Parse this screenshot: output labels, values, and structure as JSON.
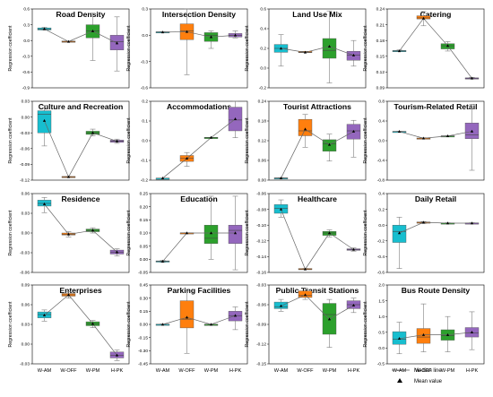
{
  "legend": {
    "median": "Median line",
    "mean": "Mean value"
  },
  "chart_data": [
    {
      "type": "box",
      "title": "Road Density",
      "ylabel": "Regression coefficient",
      "ylim": [
        -0.9,
        0.6
      ],
      "yticks": [
        "-0.9",
        "-0.6",
        "-0.3",
        "0.0",
        "0.3",
        "0.6"
      ],
      "categories": [
        "W-AM",
        "W-OFF",
        "W-PM",
        "H-PK"
      ],
      "boxes": [
        {
          "min": 0.2,
          "q1": 0.2,
          "median": 0.22,
          "q3": 0.24,
          "max": 0.25,
          "mean": 0.22
        },
        {
          "min": -0.02,
          "q1": -0.02,
          "median": -0.02,
          "q3": -0.01,
          "max": -0.01,
          "mean": -0.02
        },
        {
          "min": -0.38,
          "q1": 0.05,
          "median": 0.18,
          "q3": 0.3,
          "max": 0.52,
          "mean": 0.18
        },
        {
          "min": -0.58,
          "q1": -0.18,
          "median": -0.02,
          "q3": 0.1,
          "max": 0.45,
          "mean": -0.05
        }
      ]
    },
    {
      "type": "box",
      "title": "Intersection Density",
      "ylabel": "Regression coefficient",
      "ylim": [
        -0.6,
        0.3
      ],
      "yticks": [
        "-0.6",
        "-0.3",
        "0.0",
        "0.3"
      ],
      "categories": [
        "W-AM",
        "W-OFF",
        "W-PM",
        "H-PK"
      ],
      "boxes": [
        {
          "min": 0.03,
          "q1": 0.03,
          "median": 0.035,
          "q3": 0.04,
          "max": 0.04,
          "mean": 0.035
        },
        {
          "min": -0.45,
          "q1": -0.05,
          "median": 0.05,
          "q3": 0.13,
          "max": 0.3,
          "mean": 0.04
        },
        {
          "min": -0.15,
          "q1": -0.07,
          "median": 0.0,
          "q3": 0.03,
          "max": 0.05,
          "mean": -0.02
        },
        {
          "min": -0.03,
          "q1": -0.02,
          "median": 0.0,
          "q3": 0.02,
          "max": 0.05,
          "mean": 0.0
        }
      ]
    },
    {
      "type": "box",
      "title": "Land Use Mix",
      "ylabel": "Regression coefficient",
      "ylim": [
        -0.2,
        0.6
      ],
      "yticks": [
        "-0.2",
        "0.0",
        "0.2",
        "0.4",
        "0.6"
      ],
      "categories": [
        "W-AM",
        "W-OFF",
        "W-PM",
        "H-PK"
      ],
      "boxes": [
        {
          "min": 0.02,
          "q1": 0.16,
          "median": 0.2,
          "q3": 0.24,
          "max": 0.34,
          "mean": 0.2
        },
        {
          "min": 0.16,
          "q1": 0.16,
          "median": 0.16,
          "q3": 0.17,
          "max": 0.17,
          "mean": 0.16
        },
        {
          "min": -0.15,
          "q1": 0.1,
          "median": 0.18,
          "q3": 0.3,
          "max": 0.58,
          "mean": 0.22
        },
        {
          "min": 0.02,
          "q1": 0.08,
          "median": 0.13,
          "q3": 0.17,
          "max": 0.28,
          "mean": 0.13
        }
      ]
    },
    {
      "type": "box",
      "title": "Catering",
      "ylabel": "Regression coefficient",
      "ylim": [
        0.09,
        0.24
      ],
      "yticks": [
        "0.09",
        "0.12",
        "0.15",
        "0.18",
        "0.21",
        "0.24"
      ],
      "categories": [
        "W-AM",
        "W-OFF",
        "W-PM",
        "H-PK"
      ],
      "boxes": [
        {
          "min": 0.159,
          "q1": 0.159,
          "median": 0.16,
          "q3": 0.161,
          "max": 0.162,
          "mean": 0.16
        },
        {
          "min": 0.208,
          "q1": 0.221,
          "median": 0.223,
          "q3": 0.227,
          "max": 0.235,
          "mean": 0.222
        },
        {
          "min": 0.16,
          "q1": 0.164,
          "median": 0.17,
          "q3": 0.174,
          "max": 0.178,
          "mean": 0.17
        },
        {
          "min": 0.107,
          "q1": 0.107,
          "median": 0.108,
          "q3": 0.109,
          "max": 0.11,
          "mean": 0.108
        }
      ]
    },
    {
      "type": "box",
      "title": "Culture and Recreation",
      "ylabel": "Regression coefficient",
      "ylim": [
        -0.12,
        0.03
      ],
      "yticks": [
        "-0.12",
        "-0.09",
        "-0.06",
        "-0.03",
        "0.00",
        "0.03"
      ],
      "categories": [
        "W-AM",
        "W-OFF",
        "W-PM",
        "H-PK"
      ],
      "boxes": [
        {
          "min": -0.055,
          "q1": -0.03,
          "median": 0.005,
          "q3": 0.012,
          "max": 0.022,
          "mean": -0.007
        },
        {
          "min": -0.115,
          "q1": -0.114,
          "median": -0.114,
          "q3": -0.113,
          "max": -0.113,
          "mean": -0.114
        },
        {
          "min": -0.036,
          "q1": -0.033,
          "median": -0.03,
          "q3": -0.027,
          "max": -0.023,
          "mean": -0.03
        },
        {
          "min": -0.05,
          "q1": -0.048,
          "median": -0.046,
          "q3": -0.044,
          "max": -0.042,
          "mean": -0.046
        }
      ]
    },
    {
      "type": "box",
      "title": "Accommodations",
      "ylabel": "Regression coefficient",
      "ylim": [
        -0.2,
        0.2
      ],
      "yticks": [
        "-0.2",
        "-0.1",
        "0.0",
        "0.1",
        "0.2"
      ],
      "categories": [
        "W-AM",
        "W-OFF",
        "W-PM",
        "H-PK"
      ],
      "boxes": [
        {
          "min": -0.19,
          "q1": -0.19,
          "median": -0.19,
          "q3": -0.19,
          "max": -0.19,
          "mean": -0.19
        },
        {
          "min": -0.13,
          "q1": -0.105,
          "median": -0.09,
          "q3": -0.075,
          "max": -0.06,
          "mean": -0.09
        },
        {
          "min": 0.015,
          "q1": 0.015,
          "median": 0.016,
          "q3": 0.017,
          "max": 0.017,
          "mean": 0.016
        },
        {
          "min": 0.015,
          "q1": 0.05,
          "median": 0.105,
          "q3": 0.17,
          "max": 0.2,
          "mean": 0.11
        }
      ]
    },
    {
      "type": "box",
      "title": "Tourist Attractions",
      "ylabel": "Regression coefficient",
      "ylim": [
        0.0,
        0.24
      ],
      "yticks": [
        "0.00",
        "0.06",
        "0.12",
        "0.18",
        "0.24"
      ],
      "categories": [
        "W-AM",
        "W-OFF",
        "W-PM",
        "H-PK"
      ],
      "boxes": [
        {
          "min": 0.005,
          "q1": 0.005,
          "median": 0.006,
          "q3": 0.007,
          "max": 0.007,
          "mean": 0.006
        },
        {
          "min": 0.1,
          "q1": 0.135,
          "median": 0.15,
          "q3": 0.185,
          "max": 0.2,
          "mean": 0.155
        },
        {
          "min": 0.058,
          "q1": 0.088,
          "median": 0.11,
          "q3": 0.123,
          "max": 0.14,
          "mean": 0.108
        },
        {
          "min": 0.07,
          "q1": 0.125,
          "median": 0.15,
          "q3": 0.17,
          "max": 0.182,
          "mean": 0.148
        }
      ]
    },
    {
      "type": "box",
      "title": "Tourism-Related Retail",
      "ylabel": "Regression coefficient",
      "ylim": [
        -0.8,
        0.8
      ],
      "yticks": [
        "-0.8",
        "-0.4",
        "0.0",
        "0.4",
        "0.8"
      ],
      "categories": [
        "W-AM",
        "W-OFF",
        "W-PM",
        "H-PK"
      ],
      "boxes": [
        {
          "min": 0.18,
          "q1": 0.18,
          "median": 0.185,
          "q3": 0.19,
          "max": 0.19,
          "mean": 0.185
        },
        {
          "min": 0.04,
          "q1": 0.045,
          "median": 0.05,
          "q3": 0.055,
          "max": 0.06,
          "mean": 0.05
        },
        {
          "min": 0.09,
          "q1": 0.09,
          "median": 0.095,
          "q3": 0.1,
          "max": 0.1,
          "mean": 0.095
        },
        {
          "min": -0.6,
          "q1": 0.04,
          "median": 0.12,
          "q3": 0.36,
          "max": 0.74,
          "mean": 0.19
        }
      ]
    },
    {
      "type": "box",
      "title": "Residence",
      "ylabel": "Regression coefficient",
      "ylim": [
        -0.06,
        0.06
      ],
      "yticks": [
        "-0.06",
        "-0.03",
        "0.00",
        "0.03",
        "0.06"
      ],
      "categories": [
        "W-AM",
        "W-OFF",
        "W-PM",
        "H-PK"
      ],
      "boxes": [
        {
          "min": 0.031,
          "q1": 0.041,
          "median": 0.045,
          "q3": 0.05,
          "max": 0.054,
          "mean": 0.044
        },
        {
          "min": -0.006,
          "q1": -0.003,
          "median": -0.002,
          "q3": 0.0,
          "max": 0.002,
          "mean": -0.002
        },
        {
          "min": 0.0,
          "q1": 0.002,
          "median": 0.004,
          "q3": 0.006,
          "max": 0.008,
          "mean": 0.004
        },
        {
          "min": -0.035,
          "q1": -0.032,
          "median": -0.029,
          "q3": -0.026,
          "max": -0.024,
          "mean": -0.029
        }
      ]
    },
    {
      "type": "box",
      "title": "Education",
      "ylabel": "Regression coefficient",
      "ylim": [
        -0.05,
        0.25
      ],
      "yticks": [
        "-0.05",
        "0.00",
        "0.05",
        "0.10",
        "0.15",
        "0.20",
        "0.25"
      ],
      "categories": [
        "W-AM",
        "W-OFF",
        "W-PM",
        "H-PK"
      ],
      "boxes": [
        {
          "min": -0.012,
          "q1": -0.01,
          "median": -0.008,
          "q3": -0.006,
          "max": -0.004,
          "mean": -0.008
        },
        {
          "min": 0.1,
          "q1": 0.1,
          "median": 0.1,
          "q3": 0.101,
          "max": 0.101,
          "mean": 0.1
        },
        {
          "min": 0.0,
          "q1": 0.06,
          "median": 0.08,
          "q3": 0.13,
          "max": 0.24,
          "mean": 0.1
        },
        {
          "min": -0.04,
          "q1": 0.06,
          "median": 0.11,
          "q3": 0.13,
          "max": 0.24,
          "mean": 0.1
        }
      ]
    },
    {
      "type": "box",
      "title": "Healthcare",
      "ylabel": "Regression coefficient",
      "ylim": [
        -0.16,
        -0.06
      ],
      "yticks": [
        "-0.16",
        "-0.14",
        "-0.12",
        "-0.10",
        "-0.08",
        "-0.06"
      ],
      "categories": [
        "W-AM",
        "W-OFF",
        "W-PM",
        "H-PK"
      ],
      "boxes": [
        {
          "min": -0.09,
          "q1": -0.085,
          "median": -0.079,
          "q3": -0.074,
          "max": -0.068,
          "mean": -0.08
        },
        {
          "min": -0.156,
          "q1": -0.156,
          "median": -0.156,
          "q3": -0.155,
          "max": -0.155,
          "mean": -0.156
        },
        {
          "min": -0.115,
          "q1": -0.113,
          "median": -0.11,
          "q3": -0.108,
          "max": -0.106,
          "mean": -0.11
        },
        {
          "min": -0.133,
          "q1": -0.132,
          "median": -0.131,
          "q3": -0.13,
          "max": -0.129,
          "mean": -0.131
        }
      ]
    },
    {
      "type": "box",
      "title": "Daily Retail",
      "ylabel": "Regression coefficient",
      "ylim": [
        -0.6,
        0.4
      ],
      "yticks": [
        "-0.6",
        "-0.4",
        "-0.2",
        "0.0",
        "0.2",
        "0.4"
      ],
      "categories": [
        "W-AM",
        "W-OFF",
        "W-PM",
        "H-PK"
      ],
      "boxes": [
        {
          "min": -0.55,
          "q1": -0.22,
          "median": -0.08,
          "q3": 0.0,
          "max": 0.1,
          "mean": -0.1
        },
        {
          "min": 0.02,
          "q1": 0.03,
          "median": 0.035,
          "q3": 0.04,
          "max": 0.045,
          "mean": 0.035
        },
        {
          "min": 0.02,
          "q1": 0.022,
          "median": 0.025,
          "q3": 0.028,
          "max": 0.03,
          "mean": 0.025
        },
        {
          "min": 0.02,
          "q1": 0.022,
          "median": 0.025,
          "q3": 0.028,
          "max": 0.03,
          "mean": 0.025
        }
      ]
    },
    {
      "type": "box",
      "title": "Enterprises",
      "ylabel": "Regression coefficient",
      "ylim": [
        -0.03,
        0.09
      ],
      "yticks": [
        "-0.03",
        "0.00",
        "0.03",
        "0.06",
        "0.09"
      ],
      "categories": [
        "W-AM",
        "W-OFF",
        "W-PM",
        "H-PK"
      ],
      "boxes": [
        {
          "min": 0.035,
          "q1": 0.04,
          "median": 0.045,
          "q3": 0.049,
          "max": 0.052,
          "mean": 0.044
        },
        {
          "min": 0.07,
          "q1": 0.073,
          "median": 0.075,
          "q3": 0.077,
          "max": 0.08,
          "mean": 0.075
        },
        {
          "min": 0.025,
          "q1": 0.028,
          "median": 0.031,
          "q3": 0.034,
          "max": 0.036,
          "mean": 0.031
        },
        {
          "min": -0.025,
          "q1": -0.021,
          "median": -0.017,
          "q3": -0.012,
          "max": -0.009,
          "mean": -0.017
        }
      ]
    },
    {
      "type": "box",
      "title": "Parking Facilities",
      "ylabel": "Regression coefficient",
      "ylim": [
        -0.45,
        0.45
      ],
      "yticks": [
        "-0.45",
        "-0.30",
        "-0.15",
        "0.00",
        "0.15",
        "0.30",
        "0.45"
      ],
      "categories": [
        "W-AM",
        "W-OFF",
        "W-PM",
        "H-PK"
      ],
      "boxes": [
        {
          "min": -0.005,
          "q1": -0.003,
          "median": 0.0,
          "q3": 0.003,
          "max": 0.005,
          "mean": 0.0
        },
        {
          "min": -0.33,
          "q1": -0.04,
          "median": 0.06,
          "q3": 0.27,
          "max": 0.38,
          "mean": 0.08
        },
        {
          "min": -0.003,
          "q1": -0.002,
          "median": 0.0,
          "q3": 0.002,
          "max": 0.003,
          "mean": 0.0
        },
        {
          "min": -0.06,
          "q1": 0.04,
          "median": 0.1,
          "q3": 0.15,
          "max": 0.2,
          "mean": 0.1
        }
      ]
    },
    {
      "type": "box",
      "title": "Public Transit Stations",
      "ylabel": "Regression coefficient",
      "ylim": [
        -0.15,
        -0.03
      ],
      "yticks": [
        "-0.15",
        "-0.12",
        "-0.09",
        "-0.06",
        "-0.03"
      ],
      "categories": [
        "W-AM",
        "W-OFF",
        "W-PM",
        "H-PK"
      ],
      "boxes": [
        {
          "min": -0.07,
          "q1": -0.066,
          "median": -0.063,
          "q3": -0.056,
          "max": -0.052,
          "mean": -0.062
        },
        {
          "min": -0.052,
          "q1": -0.049,
          "median": -0.046,
          "q3": -0.039,
          "max": -0.035,
          "mean": -0.045
        },
        {
          "min": -0.125,
          "q1": -0.105,
          "median": -0.075,
          "q3": -0.058,
          "max": -0.052,
          "mean": -0.082
        },
        {
          "min": -0.072,
          "q1": -0.066,
          "median": -0.06,
          "q3": -0.054,
          "max": -0.05,
          "mean": -0.061
        }
      ]
    },
    {
      "type": "box",
      "title": "Bus Route Density",
      "ylabel": "Regression coefficient",
      "ylim": [
        -0.5,
        2.0
      ],
      "yticks": [
        "-0.5",
        "0.0",
        "0.5",
        "1.0",
        "1.5",
        "2.0"
      ],
      "categories": [
        "W-AM",
        "W-OFF",
        "W-PM",
        "H-PK"
      ],
      "boxes": [
        {
          "min": -0.18,
          "q1": 0.12,
          "median": 0.28,
          "q3": 0.52,
          "max": 0.82,
          "mean": 0.3
        },
        {
          "min": -0.12,
          "q1": 0.15,
          "median": 0.35,
          "q3": 0.62,
          "max": 1.4,
          "mean": 0.42
        },
        {
          "min": -0.12,
          "q1": 0.25,
          "median": 0.4,
          "q3": 0.58,
          "max": 1.0,
          "mean": 0.42
        },
        {
          "min": -0.05,
          "q1": 0.35,
          "median": 0.48,
          "q3": 0.65,
          "max": 1.15,
          "mean": 0.5
        }
      ]
    }
  ]
}
